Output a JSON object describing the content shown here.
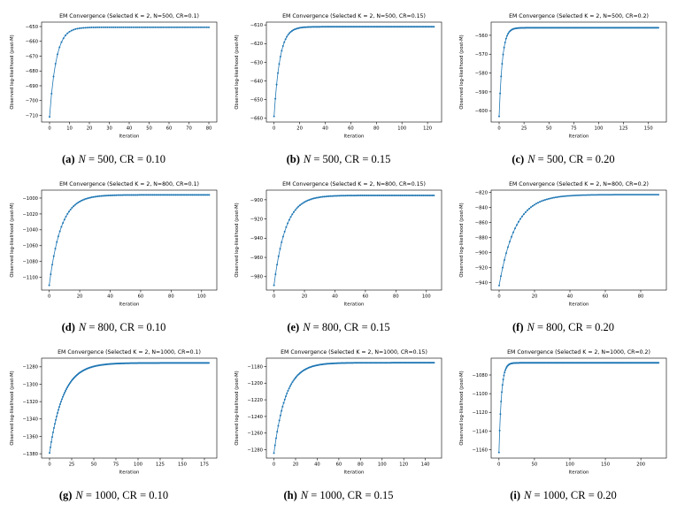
{
  "figure": {
    "description": "3x3 grid of EM convergence plots",
    "line_color": "#1f77b4",
    "text_color": "#000000"
  },
  "chart_data": [
    {
      "type": "line",
      "title": "EM Convergence (Selected K = 2, N=500, CR=0.1)",
      "xlabel": "Iteration",
      "ylabel": "Observed log-likelihood (post-M)",
      "line_color": "#1f77b4",
      "xlim": [
        -4,
        84
      ],
      "ylim": [
        -714.5,
        -647
      ],
      "xticks": [
        0,
        10,
        20,
        30,
        40,
        50,
        60,
        70,
        80
      ],
      "yticks": [
        -650,
        -660,
        -670,
        -680,
        -690,
        -700,
        -710
      ],
      "grid": false,
      "legend": false,
      "curve": {
        "model": "exponential-convergence",
        "y_start": -711,
        "y_plateau": -650.5,
        "rate": 0.3,
        "iterations": 80
      },
      "caption": {
        "label": "(a)",
        "var": "N",
        "rest": " = 500, CR = 0.10"
      }
    },
    {
      "type": "line",
      "title": "EM Convergence (Selected K = 2, N=500, CR=0.15)",
      "xlabel": "Iteration",
      "ylabel": "Observed log-likelihood (post-M)",
      "line_color": "#1f77b4",
      "xlim": [
        -6,
        131
      ],
      "ylim": [
        -662,
        -608.5
      ],
      "xticks": [
        0,
        20,
        40,
        60,
        80,
        100,
        120
      ],
      "yticks": [
        -610,
        -620,
        -630,
        -640,
        -650,
        -660
      ],
      "grid": false,
      "legend": false,
      "curve": {
        "model": "exponential-convergence",
        "y_start": -659,
        "y_plateau": -611,
        "rate": 0.22,
        "iterations": 125
      },
      "caption": {
        "label": "(b)",
        "var": "N",
        "rest": " = 500, CR = 0.15"
      }
    },
    {
      "type": "line",
      "title": "EM Convergence (Selected K = 2, N=500, CR=0.2)",
      "xlabel": "Iteration",
      "ylabel": "Observed log-likelihood (post-M)",
      "line_color": "#1f77b4",
      "xlim": [
        -8,
        168
      ],
      "ylim": [
        -606,
        -553
      ],
      "xticks": [
        0,
        25,
        50,
        75,
        100,
        125,
        150
      ],
      "yticks": [
        -560,
        -570,
        -580,
        -590,
        -600
      ],
      "grid": false,
      "legend": false,
      "curve": {
        "model": "exponential-convergence",
        "y_start": -603,
        "y_plateau": -556,
        "rate": 0.3,
        "iterations": 160
      },
      "caption": {
        "label": "(c)",
        "var": "N",
        "rest": " = 500, CR = 0.20"
      }
    },
    {
      "type": "line",
      "title": "EM Convergence (Selected K = 2, N=800, CR=0.1)",
      "xlabel": "Iteration",
      "ylabel": "Observed log-likelihood (post-M)",
      "line_color": "#1f77b4",
      "xlim": [
        -5,
        110
      ],
      "ylim": [
        -1116,
        -990
      ],
      "xticks": [
        0,
        20,
        40,
        60,
        80,
        100
      ],
      "yticks": [
        -1000,
        -1020,
        -1040,
        -1060,
        -1080,
        -1100
      ],
      "grid": false,
      "legend": false,
      "curve": {
        "model": "exponential-convergence",
        "y_start": -1110,
        "y_plateau": -996,
        "rate": 0.13,
        "iterations": 105
      },
      "caption": {
        "label": "(d)",
        "var": "N",
        "rest": " = 800, CR = 0.10"
      }
    },
    {
      "type": "line",
      "title": "EM Convergence (Selected K = 2, N=800, CR=0.15)",
      "xlabel": "Iteration",
      "ylabel": "Observed log-likelihood (post-M)",
      "line_color": "#1f77b4",
      "xlim": [
        -5,
        110
      ],
      "ylim": [
        -994,
        -890
      ],
      "xticks": [
        0,
        20,
        40,
        60,
        80,
        100
      ],
      "yticks": [
        -900,
        -920,
        -940,
        -960,
        -980
      ],
      "grid": false,
      "legend": false,
      "curve": {
        "model": "exponential-convergence",
        "y_start": -989,
        "y_plateau": -895.5,
        "rate": 0.13,
        "iterations": 105
      },
      "caption": {
        "label": "(e)",
        "var": "N",
        "rest": " = 800, CR = 0.15"
      }
    },
    {
      "type": "line",
      "title": "EM Convergence (Selected K = 2, N=800, CR=0.2)",
      "xlabel": "Iteration",
      "ylabel": "Observed log-likelihood (post-M)",
      "line_color": "#1f77b4",
      "xlim": [
        -4.5,
        94.5
      ],
      "ylim": [
        -950,
        -817
      ],
      "xticks": [
        0,
        20,
        40,
        60,
        80
      ],
      "yticks": [
        -820,
        -840,
        -860,
        -880,
        -900,
        -920,
        -940
      ],
      "grid": false,
      "legend": false,
      "curve": {
        "model": "exponential-convergence",
        "y_start": -944,
        "y_plateau": -823,
        "rate": 0.11,
        "iterations": 90
      },
      "caption": {
        "label": "(f)",
        "var": "N",
        "rest": " = 800, CR = 0.20"
      }
    },
    {
      "type": "line",
      "title": "EM Convergence (Selected K = 2, N=1000, CR=0.1)",
      "xlabel": "Iteration",
      "ylabel": "Observed log-likelihood (post-M)",
      "line_color": "#1f77b4",
      "xlim": [
        -9,
        189
      ],
      "ylim": [
        -1385,
        -1270
      ],
      "xticks": [
        0,
        25,
        50,
        75,
        100,
        125,
        150,
        175
      ],
      "yticks": [
        -1280,
        -1300,
        -1320,
        -1340,
        -1360,
        -1380
      ],
      "grid": false,
      "legend": false,
      "curve": {
        "model": "exponential-convergence",
        "y_start": -1379,
        "y_plateau": -1275.5,
        "rate": 0.065,
        "iterations": 180
      },
      "caption": {
        "label": "(g)",
        "var": "N",
        "rest": " = 1000, CR = 0.10"
      }
    },
    {
      "type": "line",
      "title": "EM Convergence (Selected K = 2, N=1000, CR=0.15)",
      "xlabel": "Iteration",
      "ylabel": "Observed log-likelihood (post-M)",
      "line_color": "#1f77b4",
      "xlim": [
        -7,
        155
      ],
      "ylim": [
        -1290,
        -1170
      ],
      "xticks": [
        0,
        20,
        40,
        60,
        80,
        100,
        120,
        140
      ],
      "yticks": [
        -1180,
        -1200,
        -1220,
        -1240,
        -1260,
        -1280
      ],
      "grid": false,
      "legend": false,
      "curve": {
        "model": "exponential-convergence",
        "y_start": -1284,
        "y_plateau": -1175.5,
        "rate": 0.09,
        "iterations": 148
      },
      "caption": {
        "label": "(h)",
        "var": "N",
        "rest": " = 1000, CR = 0.15"
      }
    },
    {
      "type": "line",
      "title": "EM Convergence (Selected K = 2, N=1000, CR=0.2)",
      "xlabel": "Iteration",
      "ylabel": "Observed log-likelihood (post-M)",
      "line_color": "#1f77b4",
      "xlim": [
        -11,
        236
      ],
      "ylim": [
        -1169,
        -1062
      ],
      "xticks": [
        0,
        50,
        100,
        150,
        200
      ],
      "yticks": [
        -1080,
        -1100,
        -1120,
        -1140,
        -1160
      ],
      "grid": false,
      "legend": false,
      "curve": {
        "model": "exponential-convergence",
        "y_start": -1163,
        "y_plateau": -1067,
        "rate": 0.28,
        "iterations": 225
      },
      "caption": {
        "label": "(i)",
        "var": "N",
        "rest": " = 1000, CR = 0.20"
      }
    }
  ]
}
